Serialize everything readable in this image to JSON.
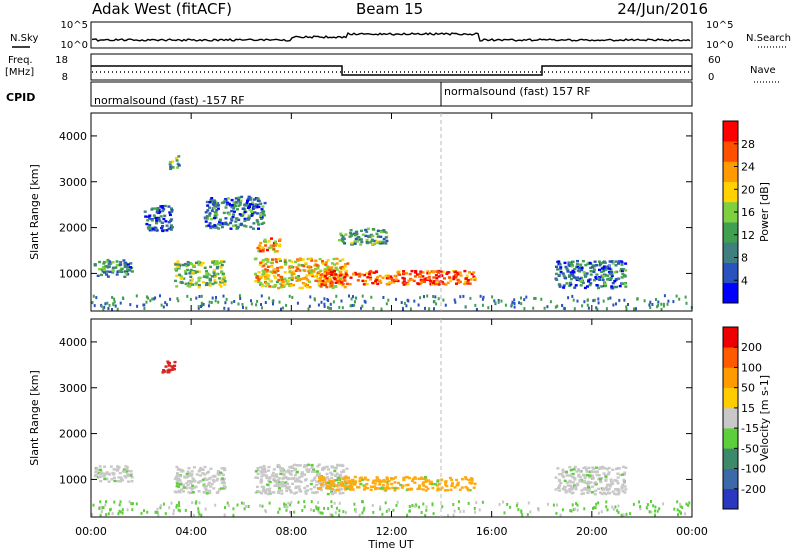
{
  "header": {
    "radar": "Adak West (fitACF)",
    "beam": "Beam 15",
    "date": "24/Jun/2016"
  },
  "top_panels": {
    "nsky_label": "N.Sky",
    "nsky_ticks": [
      "10^5",
      "10^0"
    ],
    "nsearch_label": "N.Search",
    "nsearch_ticks": [
      "10^5",
      "10^0"
    ],
    "freq_label_1": "Freq.",
    "freq_label_2": "[MHz]",
    "freq_ticks": [
      "18",
      "8"
    ],
    "nave_label": "Nave",
    "nave_ticks": [
      "60",
      "0"
    ],
    "cpid_label": "CPID",
    "cpid_segments": [
      {
        "text": "normalsound (fast) -157 RF",
        "start_hour": 0
      },
      {
        "text": "normalsound (fast) 157 RF",
        "start_hour": 14
      }
    ]
  },
  "chart_data": [
    {
      "type": "heatmap",
      "panel": "power",
      "ylabel": "Slant Range [km]",
      "yticks": [
        "4000",
        "3000",
        "2000",
        "1000"
      ],
      "ylim": [
        180,
        4500
      ],
      "xlim": [
        0,
        24
      ],
      "colorbar_label": "Power [dB]",
      "colorbar_ticks": [
        "28",
        "24",
        "20",
        "16",
        "12",
        "8",
        "4"
      ],
      "colorbar_colors": [
        "#0000ff",
        "#2a52be",
        "#3f7f7f",
        "#3fa04f",
        "#7fd040",
        "#ffd200",
        "#ff9a00",
        "#ff5000",
        "#ff0000"
      ],
      "regions": [
        {
          "t0": 0.1,
          "t1": 1.6,
          "r0": 950,
          "r1": 1320,
          "level": 0.3
        },
        {
          "t0": 3.3,
          "t1": 5.3,
          "r0": 720,
          "r1": 1300,
          "level": 0.45
        },
        {
          "t0": 6.5,
          "t1": 10.2,
          "r0": 700,
          "r1": 1350,
          "level": 0.65
        },
        {
          "t0": 9.0,
          "t1": 15.3,
          "r0": 780,
          "r1": 1080,
          "level": 0.85
        },
        {
          "t0": 6.6,
          "t1": 7.5,
          "r0": 1500,
          "r1": 1800,
          "level": 0.7
        },
        {
          "t0": 9.8,
          "t1": 11.8,
          "r0": 1650,
          "r1": 2000,
          "level": 0.35
        },
        {
          "t0": 2.1,
          "t1": 3.2,
          "r0": 1950,
          "r1": 2500,
          "level": 0.2
        },
        {
          "t0": 4.5,
          "t1": 6.9,
          "r0": 2000,
          "r1": 2700,
          "level": 0.25
        },
        {
          "t0": 18.5,
          "t1": 21.3,
          "r0": 700,
          "r1": 1300,
          "level": 0.25
        },
        {
          "t0": 3.1,
          "t1": 3.5,
          "r0": 3300,
          "r1": 3600,
          "level": 0.4
        }
      ]
    },
    {
      "type": "heatmap",
      "panel": "velocity",
      "ylabel": "Slant Range [km]",
      "xlabel": "Time UT",
      "xticks": [
        "00:00",
        "04:00",
        "08:00",
        "12:00",
        "16:00",
        "20:00",
        "00:00"
      ],
      "xlim": [
        0,
        24
      ],
      "yticks": [
        "4000",
        "3000",
        "2000",
        "1000"
      ],
      "ylim": [
        180,
        4500
      ],
      "colorbar_label": "Velocity [m s-1]",
      "colorbar_ticks": [
        "200",
        "100",
        "50",
        "15",
        "-15",
        "-50",
        "-100",
        "-200"
      ],
      "colorbar_colors": [
        "#2a38c0",
        "#3c6aa8",
        "#3c8a6a",
        "#5ccf3a",
        "#c8c8c8",
        "#ffcc00",
        "#ff9a00",
        "#ff5a00",
        "#ee0000"
      ],
      "regions": [
        {
          "t0": 0.1,
          "t1": 1.6,
          "r0": 950,
          "r1": 1320,
          "color": "#c8c8c8"
        },
        {
          "t0": 3.3,
          "t1": 5.3,
          "r0": 720,
          "r1": 1300,
          "color": "#c8c8c8"
        },
        {
          "t0": 6.5,
          "t1": 10.2,
          "r0": 700,
          "r1": 1350,
          "color": "#c8c8c8"
        },
        {
          "t0": 9.0,
          "t1": 15.3,
          "r0": 780,
          "r1": 1080,
          "color": "#ffaa10"
        },
        {
          "t0": 2.8,
          "t1": 3.4,
          "r0": 3350,
          "r1": 3600,
          "color": "#dd2020"
        },
        {
          "t0": 18.5,
          "t1": 21.3,
          "r0": 700,
          "r1": 1300,
          "color": "#c8c8c8"
        }
      ]
    }
  ]
}
